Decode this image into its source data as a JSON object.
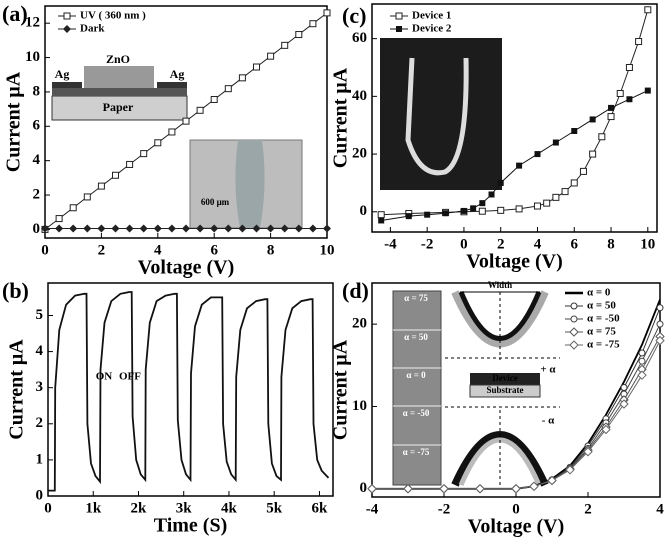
{
  "chart_data": [
    {
      "type": "line",
      "panel": "(a)",
      "xlabel": "Voltage (V)",
      "ylabel": "Current μA",
      "xlim": [
        0,
        10
      ],
      "ylim": [
        -0.5,
        13
      ],
      "xticks": [
        0,
        2,
        4,
        6,
        8,
        10
      ],
      "yticks": [
        0,
        2,
        4,
        6,
        8,
        10,
        12
      ],
      "x": [
        0,
        0.5,
        1,
        1.5,
        2,
        2.5,
        3,
        3.5,
        4,
        4.5,
        5,
        5.5,
        6,
        6.5,
        7,
        7.5,
        8,
        8.5,
        9,
        9.5,
        10
      ],
      "series": [
        {
          "name": "UV ( 360 nm )",
          "color": "#222222",
          "marker": "square-open",
          "values": [
            0,
            0.63,
            1.26,
            1.89,
            2.52,
            3.15,
            3.78,
            4.41,
            5.04,
            5.67,
            6.3,
            6.93,
            7.56,
            8.19,
            8.82,
            9.45,
            10.08,
            10.71,
            11.34,
            11.97,
            12.6
          ]
        },
        {
          "name": "Dark",
          "color": "#222222",
          "marker": "diamond",
          "values": [
            0.05,
            0.05,
            0.05,
            0.05,
            0.05,
            0.05,
            0.05,
            0.05,
            0.05,
            0.05,
            0.05,
            0.05,
            0.05,
            0.05,
            0.05,
            0.05,
            0.05,
            0.05,
            0.05,
            0.05,
            0.05
          ]
        }
      ],
      "inset_labels": [
        "Ag",
        "ZnO",
        "Ag",
        "Paper",
        "600 μm"
      ]
    },
    {
      "type": "line",
      "panel": "(b)",
      "xlabel": "Time (S)",
      "ylabel": "Current μA",
      "xlim": [
        0,
        6300
      ],
      "ylim": [
        0,
        5.9
      ],
      "xticks": [
        0,
        {
          "value": 1000,
          "label": "1k"
        },
        {
          "value": 2000,
          "label": "2k"
        },
        {
          "value": 3000,
          "label": "3k"
        },
        {
          "value": 4000,
          "label": "4k"
        },
        {
          "value": 5000,
          "label": "5k"
        },
        {
          "value": 6000,
          "label": "6k"
        }
      ],
      "yticks": [
        0,
        1,
        2,
        3,
        4,
        5
      ],
      "x": [
        0,
        150,
        160,
        250,
        400,
        600,
        800,
        850,
        870,
        950,
        1050,
        1150,
        1160,
        1250,
        1400,
        1600,
        1800,
        1850,
        1870,
        1950,
        2050,
        2150,
        2160,
        2250,
        2400,
        2600,
        2800,
        2850,
        2870,
        2950,
        3050,
        3150,
        3160,
        3250,
        3400,
        3600,
        3800,
        3850,
        3870,
        3950,
        4050,
        4150,
        4160,
        4250,
        4400,
        4600,
        4800,
        4850,
        4870,
        4950,
        5050,
        5150,
        5160,
        5250,
        5400,
        5600,
        5800,
        5850,
        5870,
        5950,
        6050,
        6200
      ],
      "series": [
        {
          "name": null,
          "color": "#111111",
          "marker": "none",
          "values": [
            0.15,
            0.15,
            3.0,
            4.6,
            5.3,
            5.55,
            5.6,
            5.6,
            2.0,
            0.9,
            0.55,
            0.4,
            3.5,
            4.8,
            5.4,
            5.6,
            5.65,
            5.65,
            2.2,
            1.0,
            0.6,
            0.45,
            3.5,
            4.8,
            5.4,
            5.55,
            5.6,
            5.6,
            2.1,
            1.0,
            0.6,
            0.45,
            3.4,
            4.7,
            5.3,
            5.5,
            5.5,
            5.5,
            2.0,
            0.95,
            0.6,
            0.45,
            3.3,
            4.6,
            5.2,
            5.4,
            5.45,
            5.45,
            2.0,
            0.9,
            0.55,
            0.45,
            3.3,
            4.6,
            5.2,
            5.4,
            5.45,
            5.45,
            2.0,
            1.0,
            0.7,
            0.5
          ]
        }
      ],
      "inset_labels": [
        "ON",
        "OFF"
      ]
    },
    {
      "type": "line",
      "panel": "(c)",
      "xlabel": "Voltage (V)",
      "ylabel": "Current μA",
      "xlim": [
        -5,
        10.5
      ],
      "ylim": [
        -7,
        72
      ],
      "xticks": [
        -4,
        -2,
        0,
        2,
        4,
        6,
        8,
        10
      ],
      "yticks": [
        0,
        20,
        40,
        60
      ],
      "series": [
        {
          "name": "Device 1",
          "color": "#222222",
          "marker": "square-open",
          "x": [
            -4.5,
            -3,
            -1,
            0,
            1,
            2,
            3,
            4,
            4.5,
            5,
            5.5,
            6,
            6.5,
            7,
            7.5,
            8,
            8.5,
            9,
            9.5,
            10
          ],
          "values": [
            -1,
            -0.6,
            -0.2,
            0,
            0.2,
            0.5,
            1,
            2,
            3,
            5,
            7,
            10,
            14,
            20,
            26,
            33,
            41,
            50,
            59,
            70
          ]
        },
        {
          "name": "Device 2",
          "color": "#111111",
          "marker": "square",
          "x": [
            -4.5,
            -3,
            -2,
            -1,
            0,
            0.5,
            1,
            1.5,
            2,
            3,
            4,
            5,
            6,
            7,
            8,
            9,
            10
          ],
          "values": [
            -3,
            -1.5,
            -1,
            -0.5,
            0.3,
            1.2,
            3,
            6,
            10,
            16,
            20,
            24,
            28,
            32,
            36,
            39,
            42
          ]
        }
      ],
      "inset_labels": []
    },
    {
      "type": "line",
      "panel": "(d)",
      "xlabel": "Voltage (V)",
      "ylabel": "Current μA",
      "xlim": [
        -4,
        4
      ],
      "ylim": [
        -1,
        25
      ],
      "xticks": [
        -4,
        -2,
        0,
        2,
        4
      ],
      "yticks": [
        0,
        10,
        20
      ],
      "x": [
        -4,
        -3,
        -2,
        -1,
        0,
        0.5,
        1,
        1.5,
        2,
        2.5,
        3,
        3.5,
        4
      ],
      "series": [
        {
          "name": "α = 0",
          "color": "#000000",
          "marker": "none",
          "values": [
            0,
            0,
            0,
            0,
            0,
            0.3,
            1.2,
            2.8,
            5.5,
            9,
            13,
            17.5,
            23
          ]
        },
        {
          "name": "α = 50",
          "color": "#333333",
          "marker": "circle-open",
          "values": [
            0,
            0,
            0,
            0,
            0,
            0.3,
            1.1,
            2.6,
            5.2,
            8.5,
            12.3,
            16.5,
            22
          ]
        },
        {
          "name": "α = -50",
          "color": "#444444",
          "marker": "circle-open",
          "values": [
            0,
            0,
            0,
            0,
            0,
            0.3,
            1.0,
            2.5,
            4.9,
            8,
            11.5,
            15.5,
            20
          ]
        },
        {
          "name": "α = 75",
          "color": "#555555",
          "marker": "diamond-open",
          "values": [
            0,
            0,
            0,
            0,
            0,
            0.3,
            1.0,
            2.4,
            4.7,
            7.5,
            10.8,
            14.5,
            18.5
          ]
        },
        {
          "name": "α = -75",
          "color": "#666666",
          "marker": "diamond-open",
          "values": [
            0,
            0,
            0,
            0,
            0,
            0.3,
            1.0,
            2.3,
            4.5,
            7.2,
            10.3,
            13.8,
            18
          ]
        }
      ],
      "inset_labels": [
        "α = 75",
        "α = 50",
        "α = 0",
        "α = -50",
        "α = -75",
        "Width",
        "+ α",
        "Device",
        "Substrate",
        "- α"
      ]
    }
  ]
}
